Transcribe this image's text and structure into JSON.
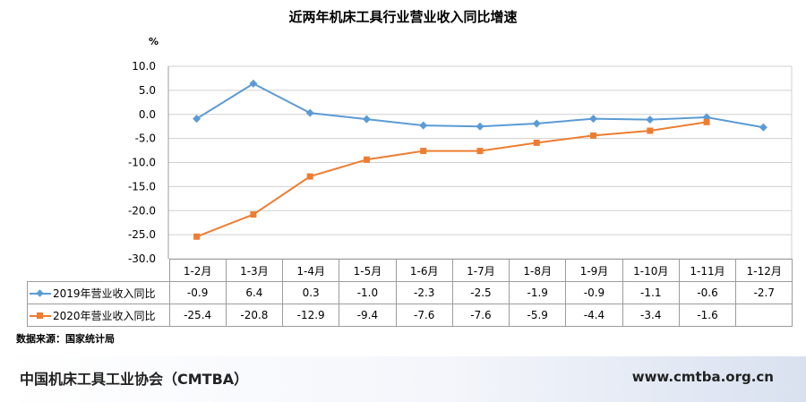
{
  "header": {
    "title": "近两年机床工具行业营业收入同比增速",
    "unit": "%"
  },
  "chart_data": {
    "type": "line",
    "title": "近两年机床工具行业营业收入同比增速",
    "ylabel": "%",
    "ylim": [
      -30,
      10
    ],
    "yticks": [
      "10.0",
      "5.0",
      "0.0",
      "-5.0",
      "-10.0",
      "-15.0",
      "-20.0",
      "-25.0",
      "-30.0"
    ],
    "categories": [
      "1-2月",
      "1-3月",
      "1-4月",
      "1-5月",
      "1-6月",
      "1-7月",
      "1-8月",
      "1-9月",
      "1-10月",
      "1-11月",
      "1-12月"
    ],
    "grid": true,
    "series": [
      {
        "name": "2019年营业收入同比",
        "color": "#5b9bd5",
        "marker": "diamond",
        "values": [
          -0.9,
          6.4,
          0.3,
          -1.0,
          -2.3,
          -2.5,
          -1.9,
          -0.9,
          -1.1,
          -0.6,
          -2.7
        ],
        "labels": [
          "-0.9",
          "6.4",
          "0.3",
          "-1.0",
          "-2.3",
          "-2.5",
          "-1.9",
          "-0.9",
          "-1.1",
          "-0.6",
          "-2.7"
        ]
      },
      {
        "name": "2020年营业收入同比",
        "color": "#ed7d31",
        "marker": "square",
        "values": [
          -25.4,
          -20.8,
          -12.9,
          -9.4,
          -7.6,
          -7.6,
          -5.9,
          -4.4,
          -3.4,
          -1.6,
          null
        ],
        "labels": [
          "-25.4",
          "-20.8",
          "-12.9",
          "-9.4",
          "-7.6",
          "-7.6",
          "-5.9",
          "-4.4",
          "-3.4",
          "-1.6",
          ""
        ]
      }
    ]
  },
  "source": "数据来源：国家统计局",
  "footer": {
    "org": "中国机床工具工业协会（CMTBA）",
    "url": "www.cmtba.org.cn"
  }
}
